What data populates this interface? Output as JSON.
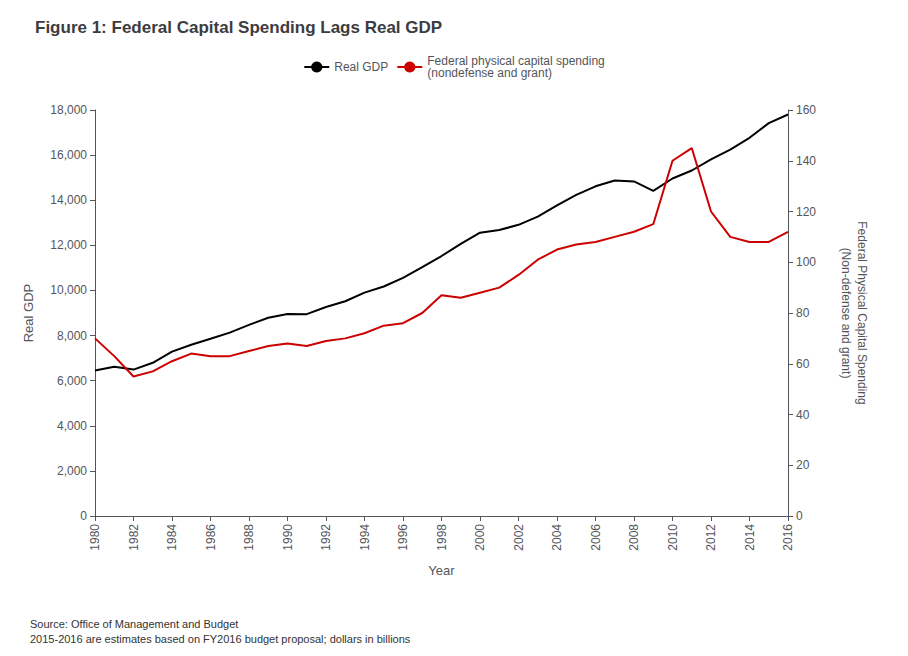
{
  "chart_data": {
    "type": "line",
    "title": "Figure 1: Federal Capital Spending Lags Real GDP",
    "xlabel": "Year",
    "ylabel": "Real GDP",
    "y2label": "Federal Physical Capital Spending\n(Non-defense and grant)",
    "annotations": [
      "Source: Office of Management and Budget\n2015-2016 are estimates based on FY2016 budget proposal; dollars in billions"
    ],
    "x": [
      1980,
      1981,
      1982,
      1983,
      1984,
      1985,
      1986,
      1987,
      1988,
      1989,
      1990,
      1991,
      1992,
      1993,
      1994,
      1995,
      1996,
      1997,
      1998,
      1999,
      2000,
      2001,
      2002,
      2003,
      2004,
      2005,
      2006,
      2007,
      2008,
      2009,
      2010,
      2011,
      2012,
      2013,
      2014,
      2015,
      2016
    ],
    "series": [
      {
        "name": "Real GDP",
        "color": "#000000",
        "axis": "y",
        "values": [
          6450,
          6617,
          6491,
          6792,
          7285,
          7594,
          7861,
          8132,
          8475,
          8787,
          8955,
          8948,
          9267,
          9521,
          9905,
          10175,
          10561,
          11035,
          11526,
          12066,
          12560,
          12682,
          12909,
          13271,
          13774,
          14235,
          14616,
          14877,
          14833,
          14418,
          14964,
          15318,
          15811,
          16246,
          16767,
          17418,
          17800
        ]
      },
      {
        "name": "Federal physical capital spending\n(nondefense and grant)",
        "color": "#cc0000",
        "axis": "y2",
        "values": [
          70,
          63,
          55,
          57,
          61,
          64,
          63,
          63,
          65,
          67,
          68,
          67,
          69,
          70,
          72,
          75,
          76,
          80,
          87,
          86,
          88,
          90,
          95,
          101,
          105,
          107,
          108,
          110,
          112,
          115,
          140,
          145,
          120,
          110,
          108,
          108,
          112
        ]
      }
    ],
    "xlim": [
      1980,
      2016
    ],
    "xticks": [
      1980,
      1982,
      1984,
      1986,
      1988,
      1990,
      1992,
      1994,
      1996,
      1998,
      2000,
      2002,
      2004,
      2006,
      2008,
      2010,
      2012,
      2014,
      2016
    ],
    "ylim": [
      0,
      18000
    ],
    "yticks": [
      0,
      {
        "value": 2000,
        "label": "2,000"
      },
      {
        "value": 4000,
        "label": "4,000"
      },
      {
        "value": 6000,
        "label": "6,000"
      },
      {
        "value": 8000,
        "label": "8,000"
      },
      {
        "value": 10000,
        "label": "10,000"
      },
      {
        "value": 12000,
        "label": "12,000"
      },
      {
        "value": 14000,
        "label": "14,000"
      },
      {
        "value": 16000,
        "label": "16,000"
      },
      {
        "value": 18000,
        "label": "18,000"
      }
    ],
    "y2lim": [
      0,
      160
    ],
    "y2ticks": [
      0,
      20,
      40,
      60,
      80,
      100,
      120,
      140,
      160
    ],
    "grid": false,
    "legend": "top"
  }
}
